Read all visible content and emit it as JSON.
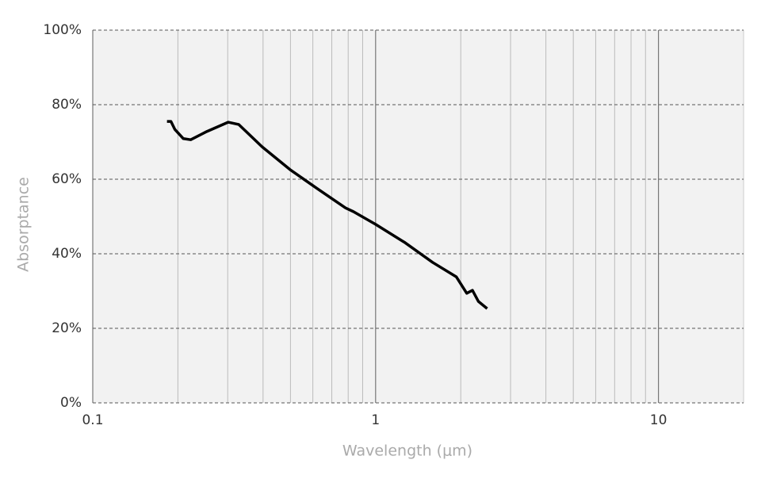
{
  "chart_data": {
    "type": "line",
    "x_label": "Wavelength (μm)",
    "y_label": "Absorptance",
    "xscale": "log",
    "xlim": [
      0.1,
      20
    ],
    "xticks": [
      0.1,
      1,
      10
    ],
    "xminor": [
      0.2,
      0.3,
      0.4,
      0.5,
      0.6,
      0.7,
      0.8,
      0.9,
      2,
      3,
      4,
      5,
      6,
      7,
      8,
      9
    ],
    "ylim": [
      0,
      100
    ],
    "yticks": [
      {
        "value": 0,
        "label": "0%"
      },
      {
        "value": 20,
        "label": "20%"
      },
      {
        "value": 40,
        "label": "40%"
      },
      {
        "value": 60,
        "label": "60%"
      },
      {
        "value": 80,
        "label": "80%"
      },
      {
        "value": 100,
        "label": "100%"
      }
    ],
    "grid": true,
    "series": [
      {
        "color": "#000000",
        "x": [
          0.183,
          0.189,
          0.195,
          0.209,
          0.222,
          0.253,
          0.301,
          0.328,
          0.397,
          0.498,
          0.624,
          0.783,
          0.835,
          1.0,
          1.27,
          1.59,
          1.93,
          2.1,
          2.2,
          2.31,
          2.48
        ],
        "values": [
          75.5,
          75.5,
          73.4,
          70.9,
          70.6,
          72.8,
          75.3,
          74.7,
          68.7,
          62.6,
          57.4,
          52.3,
          51.3,
          47.9,
          43.0,
          37.7,
          33.8,
          29.4,
          30.2,
          27.2,
          25.3
        ]
      }
    ]
  }
}
